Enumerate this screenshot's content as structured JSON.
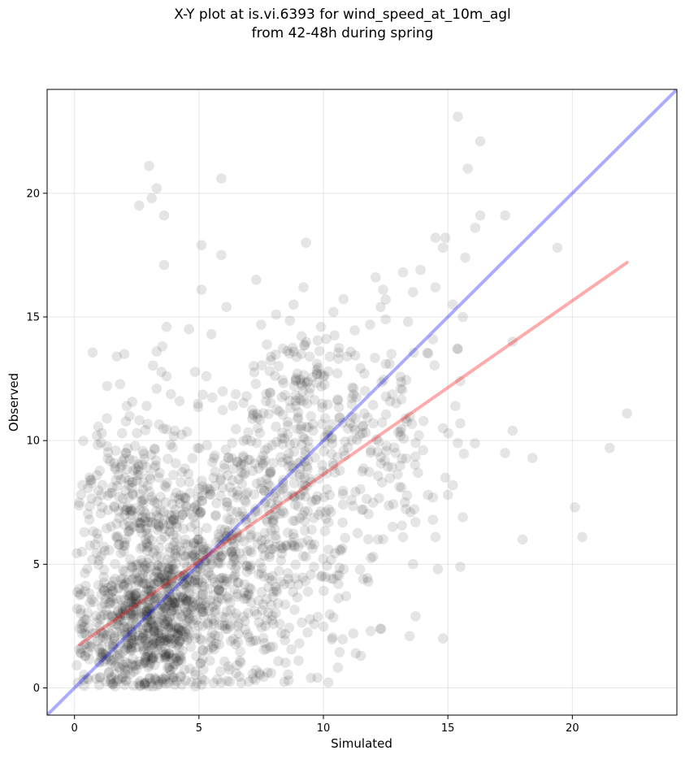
{
  "chart_data": {
    "type": "scatter",
    "title": [
      "X-Y plot at is.vi.6393 for wind_speed_at_10m_agl",
      "from 42-48h during spring"
    ],
    "xlabel": "Simulated",
    "ylabel": "Observed",
    "xlim": [
      -1.1,
      24.2
    ],
    "ylim": [
      -1.1,
      24.2
    ],
    "x_ticks": [
      0,
      5,
      10,
      15,
      20
    ],
    "y_ticks": [
      0,
      5,
      10,
      15,
      20
    ],
    "x_tick_labels": [
      "0",
      "5",
      "10",
      "15",
      "20"
    ],
    "y_tick_labels": [
      "0",
      "5",
      "10",
      "15",
      "20"
    ],
    "grid": true,
    "point_color": "#000000",
    "point_alpha": 0.1,
    "identity_line": {
      "x": [
        -1.1,
        24.2
      ],
      "y": [
        -1.1,
        24.2
      ],
      "color": "#0000ff"
    },
    "regression_line": {
      "x": [
        0.2,
        22.2
      ],
      "y": [
        1.75,
        17.2
      ],
      "color": "#ff0000"
    },
    "points": {
      "outliers": [
        [
          3.0,
          21.1
        ],
        [
          3.3,
          20.2
        ],
        [
          3.1,
          19.8
        ],
        [
          2.6,
          19.5
        ],
        [
          3.6,
          19.1
        ],
        [
          5.9,
          20.6
        ],
        [
          15.4,
          23.1
        ],
        [
          16.3,
          22.1
        ],
        [
          15.8,
          21.0
        ],
        [
          16.3,
          19.1
        ],
        [
          16.1,
          18.6
        ],
        [
          17.3,
          19.1
        ],
        [
          19.4,
          17.8
        ],
        [
          15.7,
          17.4
        ],
        [
          14.5,
          18.2
        ],
        [
          14.9,
          18.2
        ],
        [
          14.8,
          17.8
        ],
        [
          9.3,
          18.0
        ],
        [
          5.1,
          17.9
        ],
        [
          5.9,
          17.5
        ],
        [
          3.6,
          17.1
        ],
        [
          7.3,
          16.5
        ],
        [
          9.2,
          16.2
        ],
        [
          5.1,
          16.1
        ],
        [
          22.2,
          11.1
        ],
        [
          21.5,
          9.7
        ],
        [
          20.1,
          7.3
        ],
        [
          20.4,
          6.1
        ],
        [
          18.0,
          6.0
        ],
        [
          18.4,
          9.3
        ],
        [
          17.3,
          9.5
        ],
        [
          17.6,
          10.4
        ],
        [
          17.6,
          14.0
        ],
        [
          15.6,
          15.0
        ],
        [
          15.2,
          15.5
        ],
        [
          13.6,
          16.0
        ],
        [
          13.2,
          16.8
        ],
        [
          13.9,
          16.9
        ],
        [
          14.5,
          16.2
        ],
        [
          15.4,
          13.7
        ],
        [
          15.5,
          12.4
        ],
        [
          15.3,
          11.4
        ],
        [
          15.5,
          10.7
        ],
        [
          15.4,
          9.9
        ],
        [
          14.8,
          10.5
        ],
        [
          14.9,
          8.5
        ],
        [
          15.2,
          8.2
        ],
        [
          15.0,
          7.8
        ],
        [
          14.6,
          4.8
        ],
        [
          14.8,
          2.0
        ],
        [
          15.5,
          4.9
        ],
        [
          15.6,
          6.9
        ],
        [
          13.7,
          2.9
        ],
        [
          12.3,
          2.4
        ],
        [
          11.9,
          2.3
        ],
        [
          11.3,
          1.4
        ],
        [
          11.5,
          1.3
        ],
        [
          11.2,
          2.2
        ],
        [
          9.5,
          0.4
        ],
        [
          7.9,
          0.6
        ],
        [
          8.6,
          0.3
        ],
        [
          9.0,
          1.1
        ],
        [
          6.7,
          0.2
        ],
        [
          1.7,
          13.4
        ],
        [
          2.0,
          13.5
        ],
        [
          3.3,
          13.6
        ],
        [
          3.7,
          14.6
        ],
        [
          4.6,
          14.5
        ],
        [
          5.5,
          14.3
        ],
        [
          3.7,
          12.6
        ],
        [
          3.3,
          12.1
        ],
        [
          5.3,
          12.6
        ],
        [
          6.1,
          15.4
        ],
        [
          8.1,
          15.1
        ],
        [
          8.8,
          15.5
        ],
        [
          9.9,
          14.6
        ],
        [
          10.4,
          15.2
        ],
        [
          12.1,
          16.6
        ],
        [
          12.4,
          16.1
        ],
        [
          12.3,
          15.4
        ],
        [
          12.5,
          15.7
        ],
        [
          13.4,
          14.8
        ],
        [
          12.5,
          14.9
        ],
        [
          13.1,
          12.1
        ],
        [
          14.4,
          14.1
        ],
        [
          12.9,
          9.5
        ],
        [
          13.1,
          10.2
        ],
        [
          13.7,
          9.9
        ],
        [
          14.2,
          7.8
        ],
        [
          14.4,
          7.7
        ],
        [
          14.4,
          6.8
        ],
        [
          14.5,
          6.1
        ],
        [
          13.7,
          6.7
        ],
        [
          13.2,
          6.1
        ],
        [
          13.5,
          7.1
        ],
        [
          11.6,
          4.4
        ],
        [
          11.8,
          4.3
        ],
        [
          12.0,
          5.3
        ],
        [
          12.2,
          6.0
        ],
        [
          10.6,
          4.2
        ],
        [
          10.4,
          4.4
        ],
        [
          1.1,
          10.3
        ],
        [
          1.3,
          10.9
        ],
        [
          2.1,
          11.4
        ],
        [
          2.9,
          11.4
        ],
        [
          0.9,
          8.6
        ],
        [
          0.6,
          8.5
        ],
        [
          0.4,
          6.3
        ],
        [
          0.6,
          6.8
        ],
        [
          0.3,
          5.5
        ],
        [
          0.2,
          4.0
        ],
        [
          0.1,
          3.2
        ],
        [
          0.2,
          2.4
        ],
        [
          0.9,
          10.2
        ]
      ],
      "dense_clusters": [
        {
          "cx": 2.6,
          "cy": 2.3,
          "sx": 1.3,
          "sy": 1.4,
          "n": 560
        },
        {
          "cx": 4.3,
          "cy": 4.9,
          "sx": 1.6,
          "sy": 2.1,
          "n": 380
        },
        {
          "cx": 7.3,
          "cy": 7.4,
          "sx": 1.8,
          "sy": 2.6,
          "n": 320
        },
        {
          "cx": 10.3,
          "cy": 8.4,
          "sx": 1.7,
          "sy": 2.6,
          "n": 180
        },
        {
          "cx": 2.2,
          "cy": 7.6,
          "sx": 1.1,
          "sy": 1.9,
          "n": 170
        },
        {
          "cx": 6.5,
          "cy": 3.2,
          "sx": 1.7,
          "sy": 1.8,
          "n": 150
        },
        {
          "cx": 12.3,
          "cy": 11.3,
          "sx": 1.3,
          "sy": 2.0,
          "n": 70
        },
        {
          "cx": 9.0,
          "cy": 12.7,
          "sx": 1.3,
          "sy": 1.2,
          "n": 60
        }
      ]
    }
  }
}
